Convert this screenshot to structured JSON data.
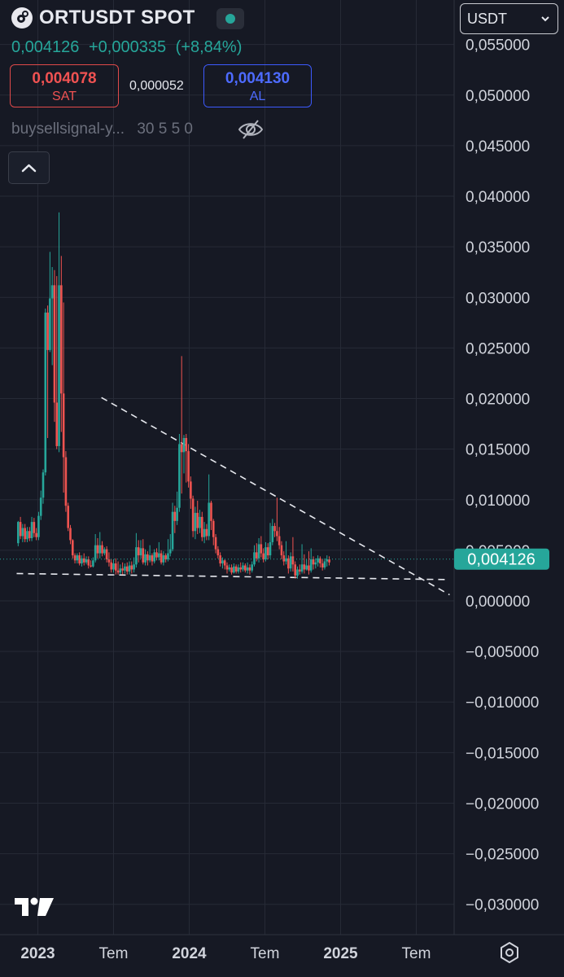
{
  "header": {
    "symbol": "ORTUSDT SPOT",
    "last_price": "0,004126",
    "change_abs": "+0,000335",
    "change_pct": "(+8,84%)",
    "sell_price": "0,004078",
    "sell_label": "SAT",
    "spread": "0,000052",
    "buy_price": "0,004130",
    "buy_label": "AL",
    "indicator_name": "buysellsignal-y...",
    "indicator_params": "30 5 5 0",
    "currency": "USDT"
  },
  "colors": {
    "up": "#26a69a",
    "down": "#ef5350",
    "background": "#161924",
    "grid": "#262a36"
  },
  "icons": [
    "app-logo",
    "market-open-dot",
    "eye-off-icon",
    "chevron-up-icon",
    "chevron-down-icon",
    "tradingview-logo",
    "gear-icon"
  ],
  "chart_data": {
    "type": "candlestick",
    "title": "ORTUSDT SPOT",
    "ylim": [
      -0.033,
      0.0594
    ],
    "xlim": [
      2022.75,
      2025.75
    ],
    "grid": true,
    "y_ticks": [
      0.055,
      0.05,
      0.045,
      0.04,
      0.035,
      0.03,
      0.025,
      0.02,
      0.015,
      0.01,
      0.005,
      0,
      -0.005,
      -0.01,
      -0.015,
      -0.02,
      -0.025,
      -0.03
    ],
    "y_tick_labels": [
      "0,055000",
      "0,050000",
      "0,045000",
      "0,040000",
      "0,035000",
      "0,030000",
      "0,025000",
      "0,020000",
      "0,015000",
      "0,010000",
      "0,005000",
      "0,000000",
      "−0,005000",
      "−0,010000",
      "−0,015000",
      "−0,020000",
      "−0,025000",
      "−0,030000"
    ],
    "x_ticks": [
      2023.0,
      2023.5,
      2024.0,
      2024.5,
      2025.0,
      2025.5
    ],
    "x_tick_labels": [
      "2023",
      "Tem",
      "2024",
      "Tem",
      "2025",
      "Tem"
    ],
    "last_price_value": 0.004126,
    "last_price_label": "0,004126",
    "trendlines": [
      {
        "x": [
          2023.42,
          2025.72
        ],
        "y": [
          0.0201,
          0.0006
        ]
      },
      {
        "x": [
          2022.86,
          2025.72
        ],
        "y": [
          0.0027,
          0.0021
        ]
      }
    ],
    "candles_mode": "ohlc",
    "candles": [
      [
        2022.87,
        0.0057,
        0.0078,
        0.0079,
        0.0054
      ],
      [
        2022.885,
        0.0078,
        0.0064,
        0.0083,
        0.0061
      ],
      [
        2022.9,
        0.0064,
        0.0072,
        0.0076,
        0.0058
      ],
      [
        2022.915,
        0.0072,
        0.0061,
        0.0076,
        0.0058
      ],
      [
        2022.93,
        0.0061,
        0.0069,
        0.0073,
        0.0058
      ],
      [
        2022.945,
        0.0069,
        0.0062,
        0.0073,
        0.0059
      ],
      [
        2022.96,
        0.0062,
        0.0078,
        0.0083,
        0.0059
      ],
      [
        2022.975,
        0.0078,
        0.0067,
        0.0082,
        0.0063
      ],
      [
        2022.99,
        0.0067,
        0.0063,
        0.0072,
        0.006
      ],
      [
        2023.005,
        0.0063,
        0.0084,
        0.0088,
        0.006
      ],
      [
        2023.02,
        0.0084,
        0.0102,
        0.0109,
        0.008
      ],
      [
        2023.035,
        0.0102,
        0.0127,
        0.013,
        0.0096
      ],
      [
        2023.05,
        0.0127,
        0.0285,
        0.0289,
        0.0124
      ],
      [
        2023.065,
        0.0285,
        0.0248,
        0.0292,
        0.0161
      ],
      [
        2023.08,
        0.0248,
        0.0299,
        0.0345,
        0.0246
      ],
      [
        2023.095,
        0.0299,
        0.0312,
        0.033,
        0.0233
      ],
      [
        2023.11,
        0.0312,
        0.0196,
        0.0327,
        0.0177
      ],
      [
        2023.125,
        0.0196,
        0.0153,
        0.0321,
        0.015
      ],
      [
        2023.14,
        0.0153,
        0.0312,
        0.0384,
        0.0147
      ],
      [
        2023.155,
        0.0312,
        0.0205,
        0.0341,
        0.0167
      ],
      [
        2023.17,
        0.0205,
        0.0142,
        0.0295,
        0.0107
      ],
      [
        2023.185,
        0.0142,
        0.0094,
        0.0148,
        0.0088
      ],
      [
        2023.2,
        0.0094,
        0.0072,
        0.0097,
        0.0069
      ],
      [
        2023.215,
        0.0072,
        0.006,
        0.0075,
        0.0056
      ],
      [
        2023.23,
        0.006,
        0.0045,
        0.0061,
        0.0042
      ],
      [
        2023.245,
        0.0045,
        0.004,
        0.0047,
        0.0037
      ],
      [
        2023.26,
        0.004,
        0.0045,
        0.0047,
        0.0037
      ],
      [
        2023.275,
        0.0045,
        0.0037,
        0.0048,
        0.0035
      ],
      [
        2023.29,
        0.0037,
        0.0042,
        0.0045,
        0.0034
      ],
      [
        2023.305,
        0.0042,
        0.0038,
        0.0047,
        0.0035
      ],
      [
        2023.32,
        0.0038,
        0.0041,
        0.0044,
        0.0036
      ],
      [
        2023.335,
        0.0041,
        0.0035,
        0.0044,
        0.0032
      ],
      [
        2023.35,
        0.0035,
        0.0034,
        0.004,
        0.0033
      ],
      [
        2023.365,
        0.0034,
        0.004,
        0.0043,
        0.0033
      ],
      [
        2023.38,
        0.004,
        0.0055,
        0.0066,
        0.0038
      ],
      [
        2023.395,
        0.0055,
        0.0047,
        0.0062,
        0.0042
      ],
      [
        2023.41,
        0.0047,
        0.0055,
        0.0068,
        0.0042
      ],
      [
        2023.425,
        0.0055,
        0.0047,
        0.0059,
        0.0044
      ],
      [
        2023.44,
        0.0047,
        0.0051,
        0.0053,
        0.0045
      ],
      [
        2023.455,
        0.0051,
        0.0041,
        0.0054,
        0.0038
      ],
      [
        2023.47,
        0.0041,
        0.0038,
        0.0048,
        0.0034
      ],
      [
        2023.485,
        0.0038,
        0.0031,
        0.0041,
        0.0028
      ],
      [
        2023.5,
        0.0031,
        0.0037,
        0.0041,
        0.0028
      ],
      [
        2023.515,
        0.0037,
        0.003,
        0.0042,
        0.0026
      ],
      [
        2023.53,
        0.003,
        0.0028,
        0.0039,
        0.0026
      ],
      [
        2023.545,
        0.0028,
        0.0032,
        0.0036,
        0.0026
      ],
      [
        2023.56,
        0.0032,
        0.003,
        0.0038,
        0.0026
      ],
      [
        2023.575,
        0.003,
        0.0034,
        0.0037,
        0.0027
      ],
      [
        2023.59,
        0.0034,
        0.0029,
        0.0038,
        0.0026
      ],
      [
        2023.605,
        0.0029,
        0.0035,
        0.0039,
        0.0026
      ],
      [
        2023.62,
        0.0035,
        0.0031,
        0.0039,
        0.0027
      ],
      [
        2023.635,
        0.0031,
        0.0036,
        0.0043,
        0.0028
      ],
      [
        2023.65,
        0.0036,
        0.0053,
        0.0067,
        0.0033
      ],
      [
        2023.665,
        0.0053,
        0.0045,
        0.006,
        0.0038
      ],
      [
        2023.68,
        0.0045,
        0.0052,
        0.006,
        0.0042
      ],
      [
        2023.695,
        0.0052,
        0.0038,
        0.0061,
        0.0036
      ],
      [
        2023.71,
        0.0038,
        0.0046,
        0.0051,
        0.0035
      ],
      [
        2023.725,
        0.0046,
        0.004,
        0.0049,
        0.0035
      ],
      [
        2023.74,
        0.004,
        0.0045,
        0.0055,
        0.0038
      ],
      [
        2023.755,
        0.0045,
        0.0039,
        0.0047,
        0.0035
      ],
      [
        2023.77,
        0.0039,
        0.0048,
        0.0051,
        0.0037
      ],
      [
        2023.785,
        0.0048,
        0.0043,
        0.0052,
        0.004
      ],
      [
        2023.8,
        0.0043,
        0.0047,
        0.0058,
        0.004
      ],
      [
        2023.815,
        0.0047,
        0.0038,
        0.005,
        0.0036
      ],
      [
        2023.83,
        0.0038,
        0.0045,
        0.0049,
        0.0035
      ],
      [
        2023.845,
        0.0045,
        0.0041,
        0.0047,
        0.0038
      ],
      [
        2023.86,
        0.0041,
        0.0047,
        0.0061,
        0.0039
      ],
      [
        2023.875,
        0.0047,
        0.0051,
        0.0066,
        0.0044
      ],
      [
        2023.89,
        0.0051,
        0.0088,
        0.0097,
        0.0049
      ],
      [
        2023.905,
        0.0088,
        0.0079,
        0.0094,
        0.0067
      ],
      [
        2023.92,
        0.0079,
        0.0092,
        0.0108,
        0.0075
      ],
      [
        2023.935,
        0.0092,
        0.0155,
        0.0165,
        0.0088
      ],
      [
        2023.95,
        0.0155,
        0.0147,
        0.0242,
        0.0106
      ],
      [
        2023.965,
        0.0147,
        0.0161,
        0.0164,
        0.0126
      ],
      [
        2023.98,
        0.0161,
        0.0148,
        0.0165,
        0.0117
      ],
      [
        2023.995,
        0.0148,
        0.0118,
        0.0155,
        0.0112
      ],
      [
        2024.01,
        0.0118,
        0.0101,
        0.0123,
        0.0091
      ],
      [
        2024.025,
        0.0101,
        0.0069,
        0.0104,
        0.0063
      ],
      [
        2024.04,
        0.0069,
        0.0087,
        0.0093,
        0.0061
      ],
      [
        2024.055,
        0.0087,
        0.0072,
        0.0099,
        0.0066
      ],
      [
        2024.07,
        0.0072,
        0.0083,
        0.009,
        0.0067
      ],
      [
        2024.085,
        0.0083,
        0.0063,
        0.0088,
        0.0059
      ],
      [
        2024.1,
        0.0063,
        0.0071,
        0.0078,
        0.0057
      ],
      [
        2024.115,
        0.0071,
        0.0064,
        0.0076,
        0.006
      ],
      [
        2024.13,
        0.0064,
        0.0097,
        0.0125,
        0.006
      ],
      [
        2024.145,
        0.0097,
        0.0079,
        0.0099,
        0.007
      ],
      [
        2024.16,
        0.0079,
        0.0063,
        0.0081,
        0.0055
      ],
      [
        2024.175,
        0.0063,
        0.0051,
        0.0066,
        0.0047
      ],
      [
        2024.19,
        0.0051,
        0.0045,
        0.0054,
        0.0042
      ],
      [
        2024.205,
        0.0045,
        0.0037,
        0.0048,
        0.0034
      ],
      [
        2024.22,
        0.0037,
        0.004,
        0.0043,
        0.0032
      ],
      [
        2024.235,
        0.004,
        0.0035,
        0.0041,
        0.0031
      ],
      [
        2024.25,
        0.0035,
        0.0031,
        0.0038,
        0.0027
      ],
      [
        2024.265,
        0.0031,
        0.0033,
        0.0036,
        0.0029
      ],
      [
        2024.28,
        0.0033,
        0.0028,
        0.0036,
        0.0026
      ],
      [
        2024.295,
        0.0028,
        0.0034,
        0.0037,
        0.0027
      ],
      [
        2024.31,
        0.0034,
        0.0029,
        0.0036,
        0.0027
      ],
      [
        2024.325,
        0.0029,
        0.0033,
        0.0036,
        0.0027
      ],
      [
        2024.34,
        0.0033,
        0.0031,
        0.0038,
        0.0028
      ],
      [
        2024.355,
        0.0031,
        0.0035,
        0.0038,
        0.0029
      ],
      [
        2024.37,
        0.0035,
        0.003,
        0.0037,
        0.0028
      ],
      [
        2024.385,
        0.003,
        0.0033,
        0.0038,
        0.0027
      ],
      [
        2024.4,
        0.0033,
        0.003,
        0.0036,
        0.0026
      ],
      [
        2024.415,
        0.003,
        0.0036,
        0.0039,
        0.0028
      ],
      [
        2024.43,
        0.0036,
        0.0048,
        0.0055,
        0.0034
      ],
      [
        2024.445,
        0.0048,
        0.0042,
        0.0057,
        0.0039
      ],
      [
        2024.46,
        0.0042,
        0.0056,
        0.0062,
        0.0038
      ],
      [
        2024.475,
        0.0056,
        0.0047,
        0.0064,
        0.0043
      ],
      [
        2024.49,
        0.0047,
        0.0041,
        0.0052,
        0.0038
      ],
      [
        2024.505,
        0.0041,
        0.0053,
        0.0058,
        0.0039
      ],
      [
        2024.52,
        0.0053,
        0.0045,
        0.0057,
        0.0041
      ],
      [
        2024.535,
        0.0045,
        0.0058,
        0.0077,
        0.0042
      ],
      [
        2024.55,
        0.0058,
        0.0074,
        0.0081,
        0.0055
      ],
      [
        2024.565,
        0.0074,
        0.0069,
        0.0077,
        0.0063
      ],
      [
        2024.58,
        0.0069,
        0.0064,
        0.0102,
        0.0059
      ],
      [
        2024.595,
        0.0064,
        0.0055,
        0.0073,
        0.0051
      ],
      [
        2024.61,
        0.0055,
        0.0045,
        0.0059,
        0.0041
      ],
      [
        2024.625,
        0.0045,
        0.0039,
        0.0049,
        0.0035
      ],
      [
        2024.64,
        0.0039,
        0.0042,
        0.0059,
        0.0036
      ],
      [
        2024.655,
        0.0042,
        0.0032,
        0.0045,
        0.0027
      ],
      [
        2024.67,
        0.0032,
        0.0044,
        0.0048,
        0.0029
      ],
      [
        2024.685,
        0.0044,
        0.0036,
        0.0063,
        0.0029
      ],
      [
        2024.7,
        0.0036,
        0.0025,
        0.0039,
        0.0022
      ],
      [
        2024.715,
        0.0025,
        0.0031,
        0.0034,
        0.0022
      ],
      [
        2024.73,
        0.0031,
        0.0029,
        0.0036,
        0.0026
      ],
      [
        2024.745,
        0.0029,
        0.0036,
        0.0056,
        0.0027
      ],
      [
        2024.76,
        0.0036,
        0.0031,
        0.0046,
        0.0027
      ],
      [
        2024.775,
        0.0031,
        0.0035,
        0.0041,
        0.003
      ],
      [
        2024.79,
        0.0035,
        0.003,
        0.0049,
        0.0026
      ],
      [
        2024.805,
        0.003,
        0.0041,
        0.0052,
        0.0028
      ],
      [
        2024.82,
        0.0041,
        0.0036,
        0.0044,
        0.0031
      ],
      [
        2024.835,
        0.0036,
        0.0038,
        0.0042,
        0.0032
      ],
      [
        2024.85,
        0.0038,
        0.0042,
        0.0045,
        0.0034
      ],
      [
        2024.865,
        0.0042,
        0.0037,
        0.0044,
        0.0033
      ],
      [
        2024.88,
        0.0037,
        0.0033,
        0.0041,
        0.003
      ],
      [
        2024.895,
        0.0033,
        0.0039,
        0.0042,
        0.0031
      ],
      [
        2024.91,
        0.0039,
        0.0041,
        0.0045,
        0.0034
      ],
      [
        2024.925,
        0.0041,
        0.0038,
        0.0044,
        0.0035
      ]
    ]
  }
}
